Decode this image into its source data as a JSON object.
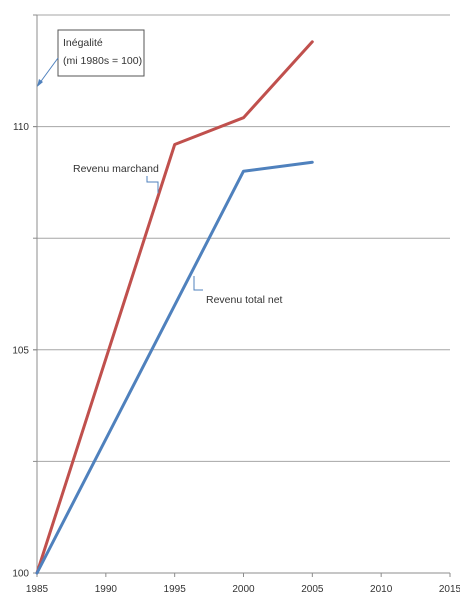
{
  "chart_data": {
    "type": "line",
    "x": [
      1985,
      1995,
      2000,
      2005
    ],
    "series": [
      {
        "name": "Revenu marchand",
        "values": [
          100,
          109.6,
          110.2,
          111.9
        ],
        "color": "#c0504d"
      },
      {
        "name": "Revenu total net",
        "values": [
          100,
          106,
          109,
          109.2
        ],
        "color": "#4f81bd"
      }
    ],
    "xlim": [
      1985,
      2015
    ],
    "ylim": [
      100,
      112.5
    ],
    "x_ticks": [
      "1985",
      "1990",
      "1995",
      "2000",
      "2005",
      "2010",
      "2015"
    ],
    "y_ticks": [
      "100",
      "105",
      "110"
    ],
    "y_gridlines": [
      102.5,
      105,
      107.5,
      110,
      112.5
    ],
    "grid": true,
    "annotation": "Inégalité\n(mi 1980s = 100)",
    "annotation_lines": [
      "Inégalité",
      "(mi 1980s = 100)"
    ],
    "xlabel": "",
    "ylabel": ""
  }
}
